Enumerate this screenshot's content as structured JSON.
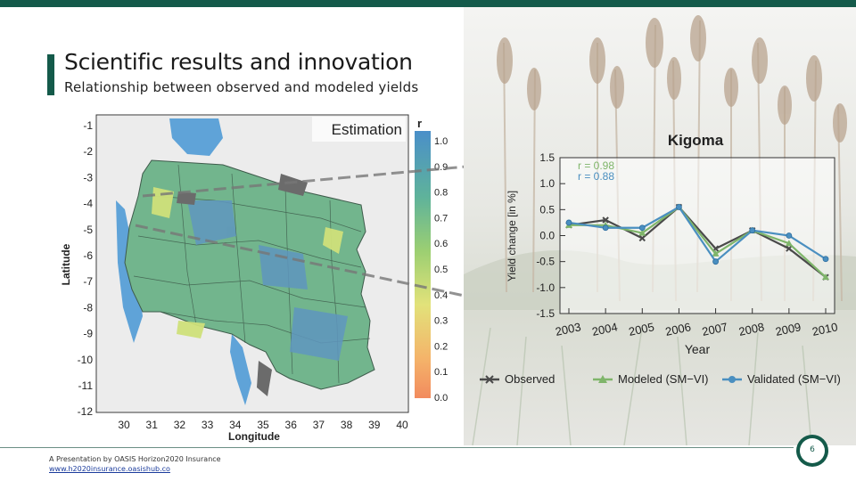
{
  "slide": {
    "title": "Scientific results and innovation",
    "subtitle": "Relationship between observed and modeled yields",
    "page_number": "6",
    "footer_text": "A Presentation by OASIS Horizon2020 Insurance",
    "footer_link": "www.h2020insurance.oasishub.co",
    "colors": {
      "accent": "#145a4a",
      "bar": "#145a4a"
    }
  },
  "map": {
    "estimation_label": "Estimation",
    "colorbar_title": "r",
    "colorbar_ticks": [
      "1.0",
      "0.9",
      "0.8",
      "0.7",
      "0.6",
      "0.5",
      "0.4",
      "0.3",
      "0.2",
      "0.1",
      "0.0"
    ],
    "y_label": "Latitude",
    "x_label": "Longitude",
    "lat_ticks": [
      "-1",
      "-2",
      "-3",
      "-4",
      "-5",
      "-6",
      "-7",
      "-8",
      "-9",
      "-10",
      "-11",
      "-12"
    ],
    "lon_ticks": [
      "30",
      "31",
      "32",
      "33",
      "34",
      "35",
      "36",
      "37",
      "38",
      "39",
      "40"
    ]
  },
  "chart_data": {
    "type": "line",
    "title": "Kigoma",
    "x": [
      2003,
      2004,
      2005,
      2006,
      2007,
      2008,
      2009,
      2010
    ],
    "xlabel": "Year",
    "ylabel": "Yield change [in %]",
    "ylim": [
      -1.5,
      1.5
    ],
    "yticks": [
      "1.5",
      "1.0",
      "0.5",
      "0.0",
      "-0.5",
      "-1.0",
      "-1.5"
    ],
    "legend_position": "bottom",
    "annotations": [
      "r = 0.98",
      "r = 0.88"
    ],
    "series": [
      {
        "name": "Observed",
        "color": "#4a4a4a",
        "marker": "x",
        "values": [
          0.2,
          0.3,
          -0.05,
          0.55,
          -0.25,
          0.1,
          -0.25,
          -0.8
        ]
      },
      {
        "name": "Modeled (SM−VI)",
        "color": "#7fb56a",
        "marker": "triangle",
        "values": [
          0.2,
          0.2,
          0.05,
          0.55,
          -0.35,
          0.1,
          -0.15,
          -0.8
        ]
      },
      {
        "name": "Validated (SM−VI)",
        "color": "#4a8fc0",
        "marker": "circle",
        "values": [
          0.25,
          0.15,
          0.15,
          0.55,
          -0.5,
          0.1,
          0.0,
          -0.45
        ]
      }
    ]
  }
}
